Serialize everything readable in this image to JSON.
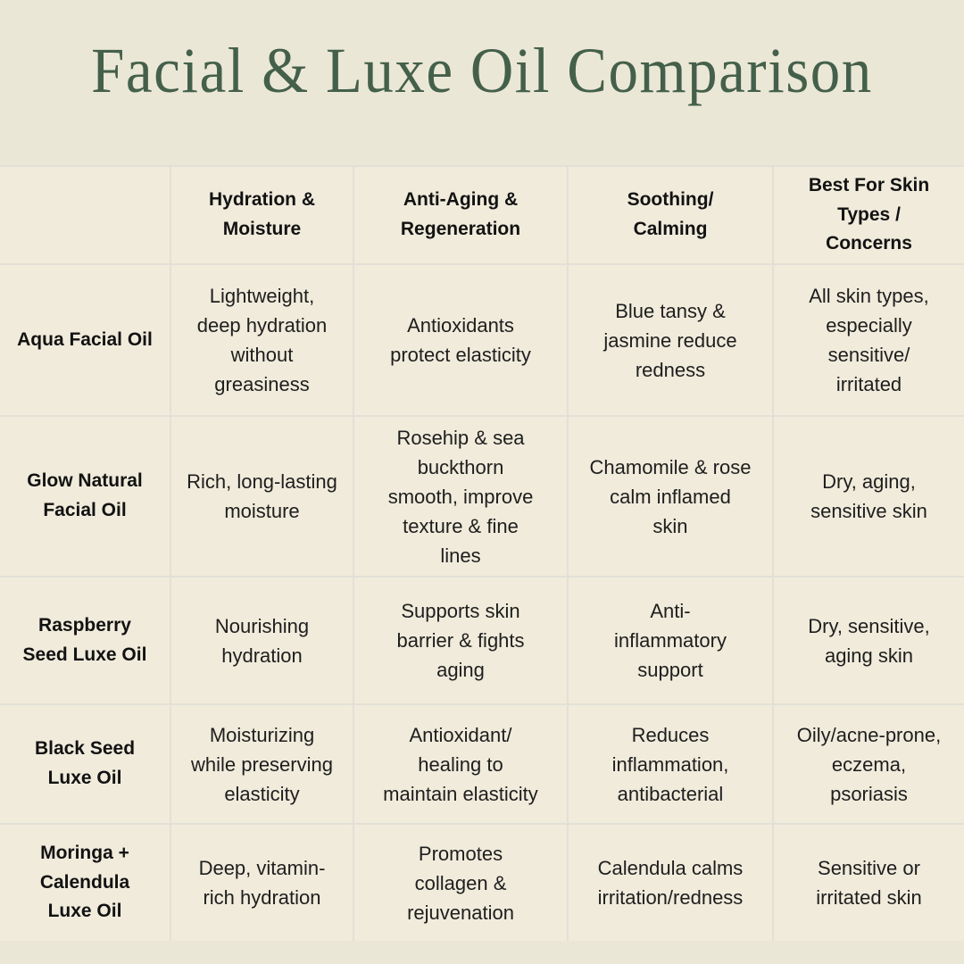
{
  "title": "Facial & Luxe Oil Comparison",
  "colors": {
    "page_background": "#ebe7d6",
    "cell_background": "#f0ebdb",
    "gridline": "#e2e0d6",
    "title_green": "#44604b",
    "body_text": "#1e1e1e"
  },
  "table": {
    "column_headers": [
      "Hydration &\nMoisture",
      "Anti-Aging &\nRegeneration",
      "Soothing/\nCalming",
      "Best For Skin\nTypes /\nConcerns"
    ],
    "rows": [
      {
        "name": "Aqua Facial Oil",
        "cells": [
          "Lightweight,\ndeep hydration\nwithout\ngreasiness",
          "Antioxidants\nprotect elasticity",
          "Blue tansy &\njasmine reduce\nredness",
          "All skin types,\nespecially\nsensitive/\nirritated"
        ]
      },
      {
        "name": "Glow Natural\nFacial Oil",
        "cells": [
          "Rich, long-lasting\nmoisture",
          "Rosehip & sea\nbuckthorn\nsmooth, improve\ntexture & fine\nlines",
          "Chamomile & rose\ncalm inflamed\nskin",
          "Dry, aging,\nsensitive skin"
        ]
      },
      {
        "name": "Raspberry\nSeed Luxe Oil",
        "cells": [
          "Nourishing\nhydration",
          "Supports skin\nbarrier & fights\naging",
          "Anti-\ninflammatory\nsupport",
          "Dry, sensitive,\naging skin"
        ]
      },
      {
        "name": "Black Seed\nLuxe Oil",
        "cells": [
          "Moisturizing\nwhile preserving\nelasticity",
          "Antioxidant/\nhealing to\nmaintain elasticity",
          "Reduces\ninflammation,\nantibacterial",
          "Oily/acne-prone,\neczema,\npsoriasis"
        ]
      },
      {
        "name": "Moringa +\nCalendula\nLuxe Oil",
        "cells": [
          "Deep, vitamin-\nrich hydration",
          "Promotes\ncollagen &\nrejuvenation",
          "Calendula calms\nirritation/redness",
          "Sensitive or\nirritated skin"
        ]
      }
    ]
  }
}
